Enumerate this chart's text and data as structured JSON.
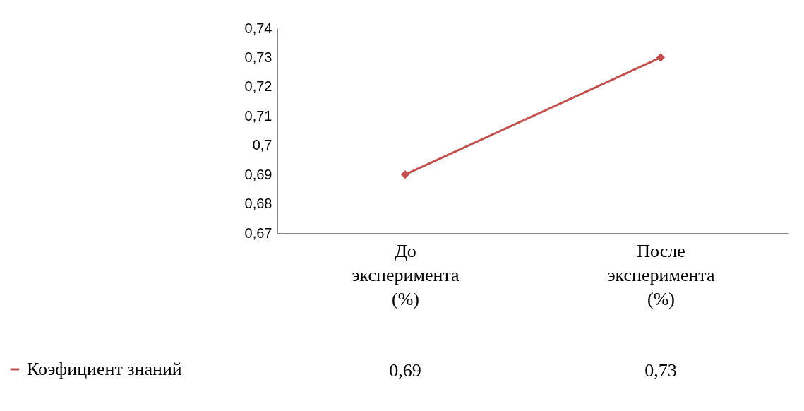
{
  "chart_data": {
    "type": "line",
    "categories": [
      "До эксперимента (%)",
      "После эксперимента (%)"
    ],
    "series": [
      {
        "name": "Коэфициент знаний",
        "color": "#c0504d",
        "values": [
          0.69,
          0.73
        ],
        "value_labels": [
          "0,69",
          "0,73"
        ]
      }
    ],
    "ylim": [
      0.67,
      0.74
    ],
    "yticks": [
      {
        "value": 0.67,
        "label": "0,67"
      },
      {
        "value": 0.68,
        "label": "0,68"
      },
      {
        "value": 0.69,
        "label": "0,69"
      },
      {
        "value": 0.7,
        "label": "0,7"
      },
      {
        "value": 0.71,
        "label": "0,71"
      },
      {
        "value": 0.72,
        "label": "0,72"
      },
      {
        "value": 0.73,
        "label": "0,73"
      },
      {
        "value": 0.74,
        "label": "0,74"
      }
    ],
    "marker": "diamond",
    "line_style": "solid",
    "grid": false,
    "legend": "bottom left"
  }
}
